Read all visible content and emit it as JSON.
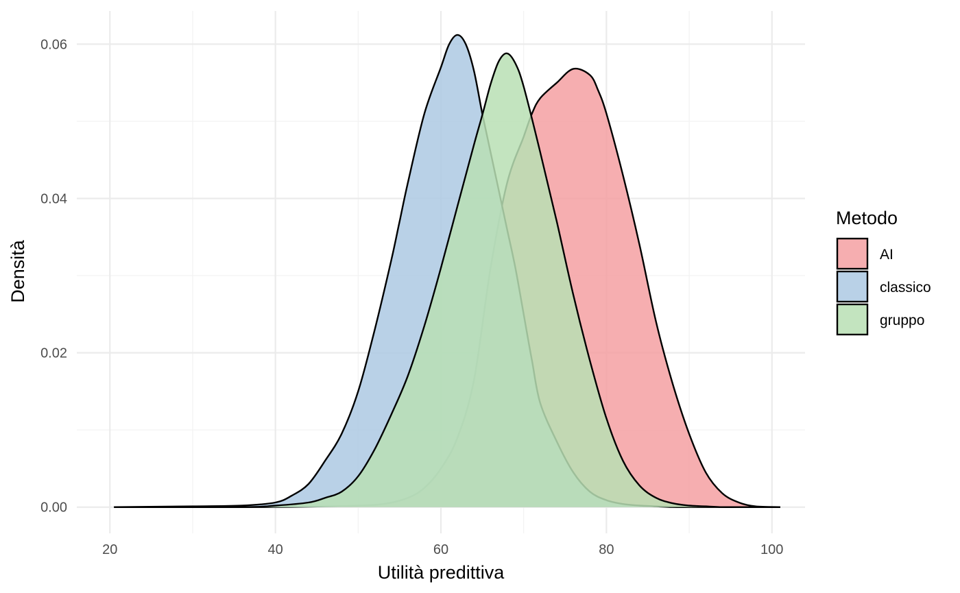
{
  "chart_data": {
    "type": "area",
    "xlabel": "Utilità predittiva",
    "ylabel": "Densità",
    "xlim": [
      16,
      104
    ],
    "ylim": [
      -0.0034,
      0.0643
    ],
    "x_ticks": [
      20,
      40,
      60,
      80,
      100
    ],
    "x_tick_labels": [
      "20",
      "40",
      "60",
      "80",
      "100"
    ],
    "y_ticks": [
      0.0,
      0.02,
      0.04,
      0.06
    ],
    "y_tick_labels": [
      "0.00",
      "0.02",
      "0.04",
      "0.06"
    ],
    "grid": true,
    "legend": {
      "title": "Metodo",
      "position": "right",
      "entries": [
        "AI",
        "classico",
        "gruppo"
      ]
    },
    "series": [
      {
        "name": "AI",
        "color": "#f4a0a2",
        "x": [
          20.5,
          38,
          46,
          50,
          53,
          56,
          58,
          60,
          62,
          64,
          66,
          68,
          70,
          71,
          72,
          74,
          76,
          78,
          79,
          80,
          82,
          84,
          86,
          88,
          90,
          92,
          94,
          96,
          98,
          101
        ],
        "y": [
          0.0,
          0.0,
          0.0001,
          0.0002,
          0.0004,
          0.0012,
          0.0025,
          0.005,
          0.009,
          0.0165,
          0.031,
          0.042,
          0.048,
          0.051,
          0.053,
          0.055,
          0.0568,
          0.056,
          0.054,
          0.051,
          0.043,
          0.034,
          0.024,
          0.016,
          0.0095,
          0.0045,
          0.0018,
          0.0006,
          0.0001,
          0.0
        ]
      },
      {
        "name": "classico",
        "color": "#adc9e3",
        "x": [
          20.5,
          30,
          36,
          40,
          42,
          44,
          46,
          48,
          50,
          52,
          54,
          55,
          56,
          58,
          60,
          61,
          62,
          63,
          64,
          65,
          66,
          67,
          68,
          69,
          70,
          71,
          72,
          74,
          76,
          78,
          80,
          82,
          84,
          86,
          88,
          90,
          92,
          94,
          96,
          101
        ],
        "y": [
          0.0,
          0.0001,
          0.0002,
          0.0006,
          0.0015,
          0.003,
          0.006,
          0.0095,
          0.015,
          0.023,
          0.032,
          0.037,
          0.042,
          0.051,
          0.057,
          0.06,
          0.0612,
          0.06,
          0.0565,
          0.051,
          0.046,
          0.041,
          0.036,
          0.031,
          0.025,
          0.019,
          0.0135,
          0.0085,
          0.0045,
          0.002,
          0.0009,
          0.0004,
          0.0002,
          0.0001,
          0.0,
          0.0,
          0.0,
          0.0,
          0.0,
          0.0
        ]
      },
      {
        "name": "gruppo",
        "color": "#b8dfb4",
        "x": [
          20.5,
          36,
          40,
          44,
          46,
          48,
          50,
          52,
          54,
          56,
          58,
          60,
          62,
          64,
          65,
          66,
          67,
          68,
          69,
          70,
          72,
          74,
          76,
          78,
          80,
          82,
          84,
          86,
          88,
          90,
          92,
          94,
          96,
          101
        ],
        "y": [
          0.0,
          0.0,
          0.0002,
          0.0006,
          0.0012,
          0.002,
          0.004,
          0.0075,
          0.012,
          0.017,
          0.0235,
          0.031,
          0.039,
          0.047,
          0.0508,
          0.0548,
          0.0578,
          0.0588,
          0.0575,
          0.0545,
          0.046,
          0.037,
          0.0275,
          0.019,
          0.0115,
          0.006,
          0.0028,
          0.0012,
          0.0005,
          0.0002,
          0.0001,
          0.0,
          0.0,
          0.0
        ]
      }
    ]
  }
}
